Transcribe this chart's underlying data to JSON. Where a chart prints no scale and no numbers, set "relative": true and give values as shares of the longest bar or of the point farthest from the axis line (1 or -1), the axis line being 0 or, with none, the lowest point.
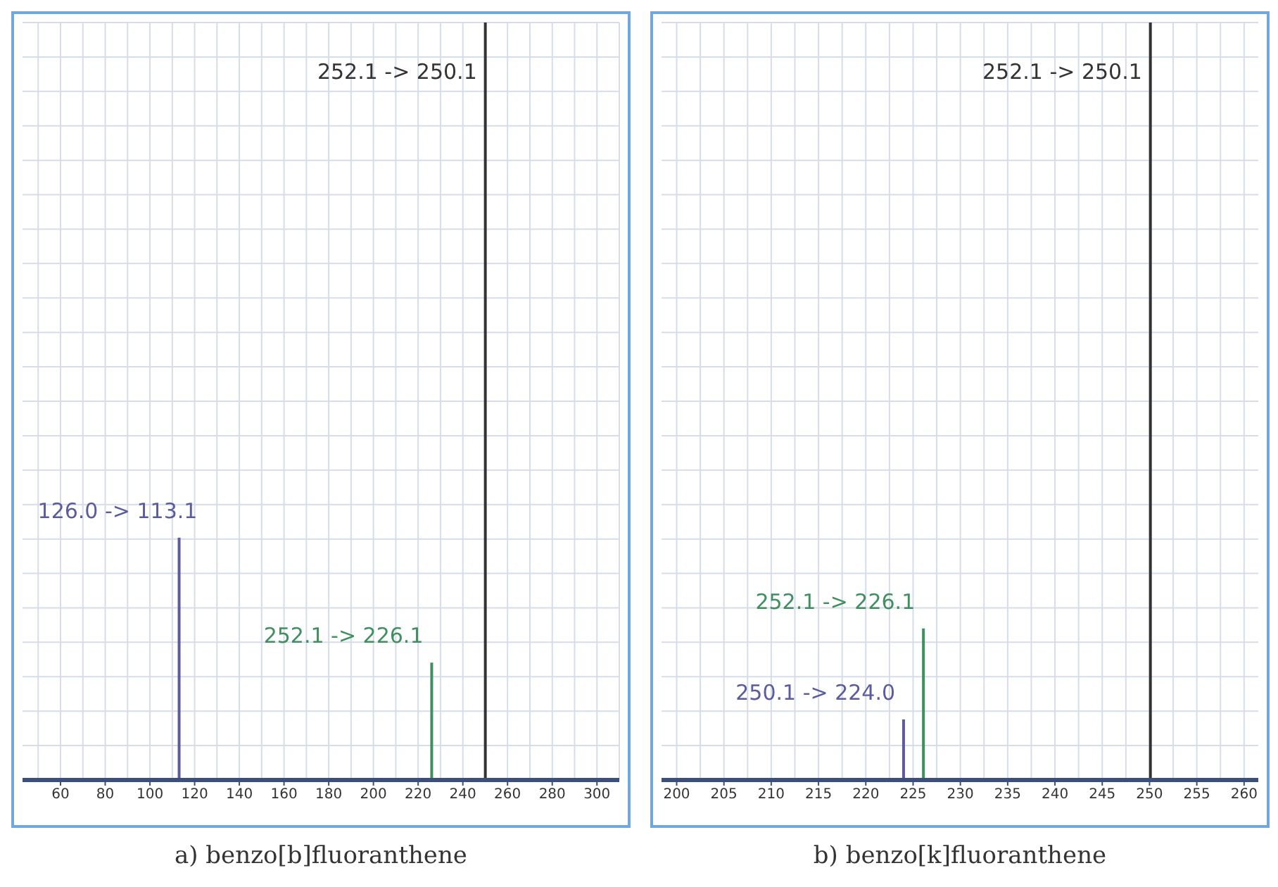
{
  "chart_data": [
    {
      "type": "bar",
      "title": "a) benzo[b]fluoranthene",
      "x": [
        113.1,
        226.1,
        250.1
      ],
      "values": [
        0.32,
        0.155,
        1
      ],
      "colors": [
        "#5b5b9e",
        "#3f8f5f",
        "#333333"
      ],
      "annotations": [
        {
          "text": "126.0 -> 113.1",
          "x": 113.1,
          "y": 0.32
        },
        {
          "text": "252.1 -> 226.1",
          "x": 226.1,
          "y": 0.155
        },
        {
          "text": "252.1 -> 250.1",
          "x": 250.1,
          "y": 1
        }
      ],
      "relative": true,
      "xlim": [
        43,
        310
      ],
      "xticks": [
        60,
        80,
        100,
        120,
        140,
        160,
        180,
        200,
        220,
        240,
        260,
        280,
        300
      ],
      "grid": true
    },
    {
      "type": "bar",
      "title": "b) benzo[k]fluoranthene",
      "x": [
        224.0,
        226.1,
        250.1
      ],
      "values": [
        0.08,
        0.2,
        1
      ],
      "colors": [
        "#5b5b9e",
        "#3f8f5f",
        "#333333"
      ],
      "annotations": [
        {
          "text": "250.1 -> 224.0",
          "x": 224.0,
          "y": 0.08
        },
        {
          "text": "252.1 -> 226.1",
          "x": 226.1,
          "y": 0.2
        },
        {
          "text": "252.1 -> 250.1",
          "x": 250.1,
          "y": 1
        }
      ],
      "relative": true,
      "xlim": [
        198.4,
        261.5
      ],
      "xticks": [
        200,
        205,
        210,
        215,
        220,
        225,
        230,
        235,
        240,
        245,
        250,
        255,
        260
      ],
      "grid": true
    }
  ]
}
